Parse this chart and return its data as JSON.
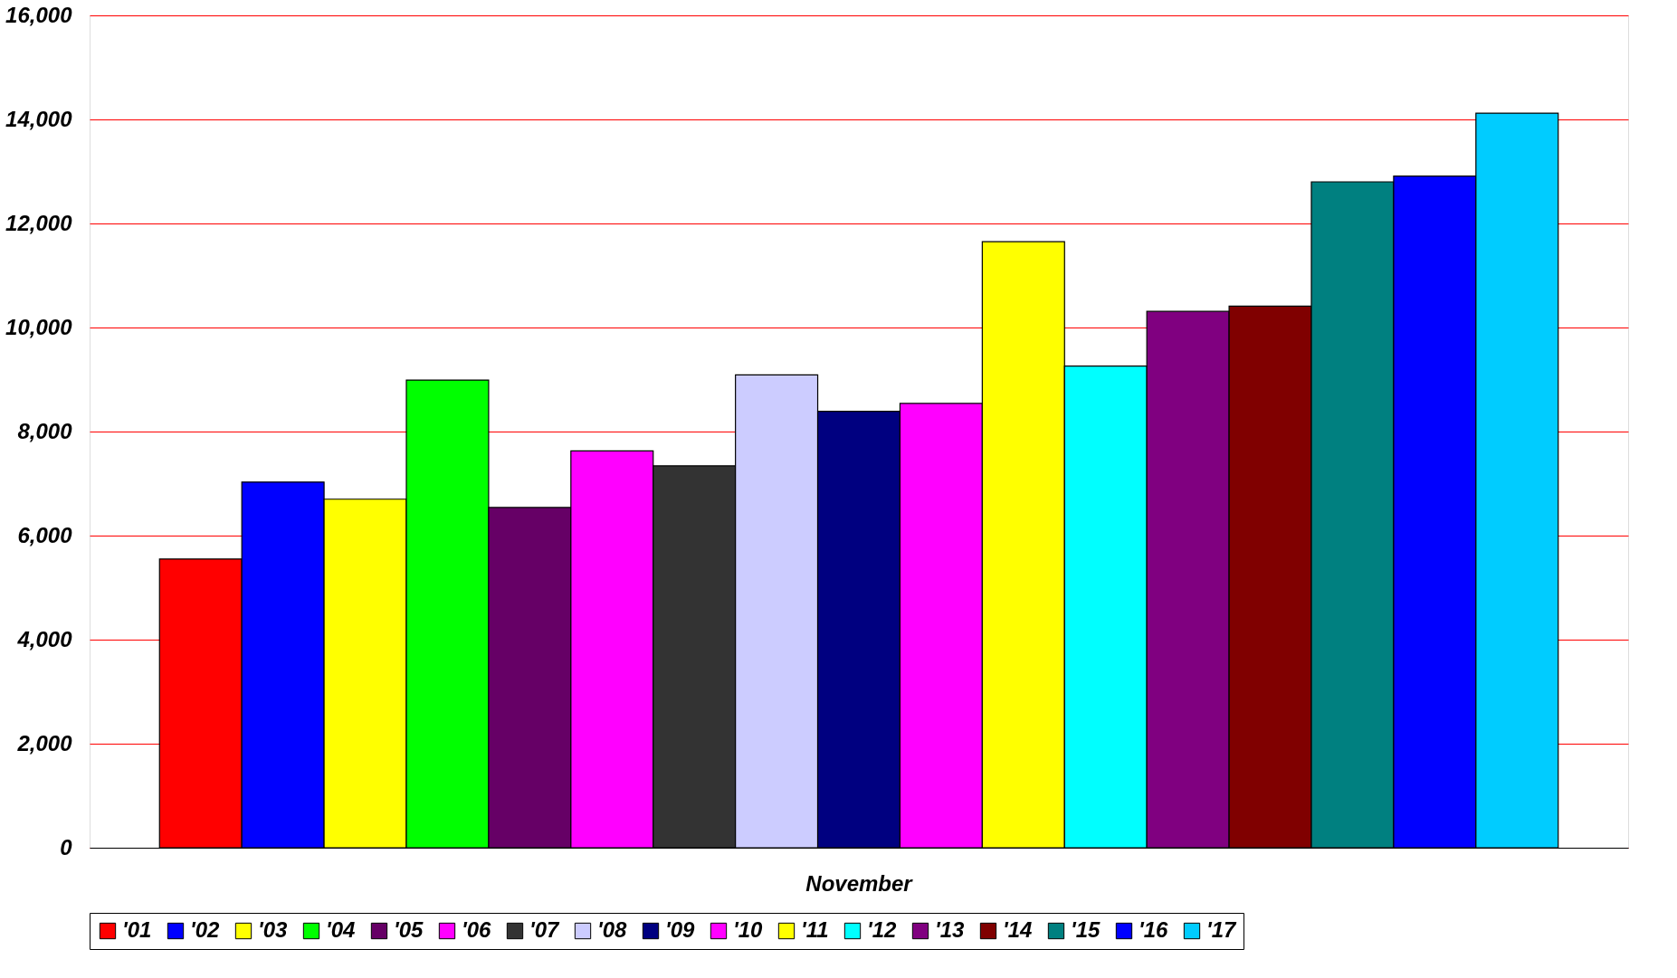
{
  "chart_data": {
    "type": "bar",
    "categories": [
      "November"
    ],
    "series": [
      {
        "name": "'01",
        "color": "#ff0000",
        "values": [
          5550
        ]
      },
      {
        "name": "'02",
        "color": "#0000ff",
        "values": [
          7030
        ]
      },
      {
        "name": "'03",
        "color": "#ffff00",
        "values": [
          6700
        ]
      },
      {
        "name": "'04",
        "color": "#00ff00",
        "values": [
          8990
        ]
      },
      {
        "name": "'05",
        "color": "#660066",
        "values": [
          6540
        ]
      },
      {
        "name": "'06",
        "color": "#ff00ff",
        "values": [
          7630
        ]
      },
      {
        "name": "'07",
        "color": "#333333",
        "values": [
          7340
        ]
      },
      {
        "name": "'08",
        "color": "#ccccff",
        "values": [
          9090
        ]
      },
      {
        "name": "'09",
        "color": "#000080",
        "values": [
          8390
        ]
      },
      {
        "name": "'10",
        "color": "#ff00ff",
        "values": [
          8540
        ]
      },
      {
        "name": "'11",
        "color": "#ffff00",
        "values": [
          11650
        ]
      },
      {
        "name": "'12",
        "color": "#00ffff",
        "values": [
          9260
        ]
      },
      {
        "name": "'13",
        "color": "#800080",
        "values": [
          10310
        ]
      },
      {
        "name": "'14",
        "color": "#800000",
        "values": [
          10410
        ]
      },
      {
        "name": "'15",
        "color": "#008080",
        "values": [
          12800
        ]
      },
      {
        "name": "'16",
        "color": "#0000ff",
        "values": [
          12910
        ]
      },
      {
        "name": "'17",
        "color": "#00ccff",
        "values": [
          14120
        ]
      }
    ],
    "ylim": [
      0,
      16000
    ],
    "yticks": [
      {
        "value": 0,
        "label": "0"
      },
      {
        "value": 2000,
        "label": "2,000"
      },
      {
        "value": 4000,
        "label": "4,000"
      },
      {
        "value": 6000,
        "label": "6,000"
      },
      {
        "value": 8000,
        "label": "8,000"
      },
      {
        "value": 10000,
        "label": "10,000"
      },
      {
        "value": 12000,
        "label": "12,000"
      },
      {
        "value": 14000,
        "label": "14,000"
      },
      {
        "value": 16000,
        "label": "16,000"
      }
    ],
    "grid": "y",
    "legend": "bottom"
  }
}
